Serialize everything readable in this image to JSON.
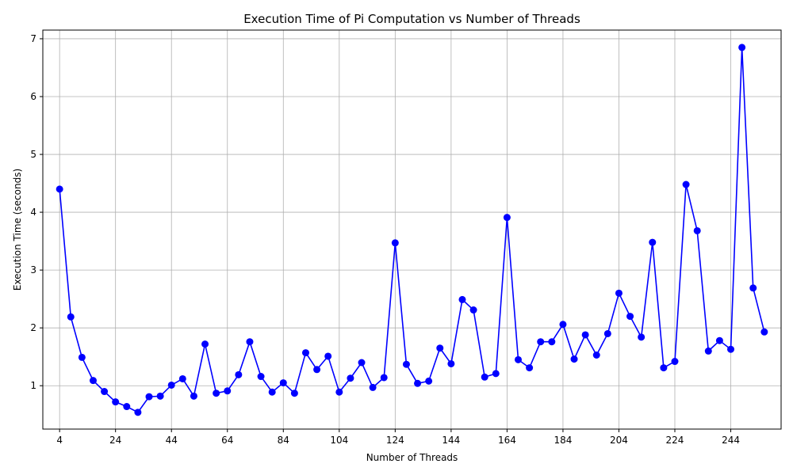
{
  "chart_data": {
    "type": "line",
    "title": "Execution Time of Pi Computation vs Number of Threads",
    "xlabel": "Number of Threads",
    "ylabel": "Execution Time (seconds)",
    "xlim": [
      -2,
      262
    ],
    "ylim": [
      0.25,
      7.15
    ],
    "xticks": [
      4,
      24,
      44,
      64,
      84,
      104,
      124,
      144,
      164,
      184,
      204,
      224,
      244
    ],
    "yticks": [
      1,
      2,
      3,
      4,
      5,
      6,
      7
    ],
    "grid": true,
    "color": "#0000ff",
    "series": [
      {
        "x": [
          4,
          8,
          12,
          16,
          20,
          24,
          28,
          32,
          36,
          40,
          44,
          48,
          52,
          56,
          60,
          64,
          68,
          72,
          76,
          80,
          84,
          88,
          92,
          96,
          100,
          104,
          108,
          112,
          116,
          120,
          124,
          128,
          132,
          136,
          140,
          144,
          148,
          152,
          156,
          160,
          164,
          168,
          172,
          176,
          180,
          184,
          188,
          192,
          196,
          200,
          204,
          208,
          212,
          216,
          220,
          224,
          228,
          232,
          236,
          240,
          244,
          248,
          252,
          256
        ],
        "values": [
          4.4,
          2.19,
          1.49,
          1.09,
          0.9,
          0.72,
          0.64,
          0.54,
          0.81,
          0.82,
          1.01,
          1.12,
          0.82,
          1.72,
          0.87,
          0.91,
          1.19,
          1.76,
          1.16,
          0.89,
          1.05,
          0.87,
          1.57,
          1.28,
          1.51,
          0.89,
          1.13,
          1.4,
          0.97,
          1.14,
          3.47,
          1.37,
          1.04,
          1.08,
          1.65,
          1.38,
          2.49,
          2.31,
          1.15,
          1.21,
          3.91,
          1.45,
          1.31,
          1.76,
          1.76,
          2.06,
          1.46,
          1.88,
          1.53,
          1.9,
          2.6,
          2.2,
          1.84,
          3.48,
          1.31,
          1.42,
          4.48,
          3.68,
          1.6,
          1.78,
          1.63,
          6.85,
          2.69,
          1.93
        ]
      }
    ]
  }
}
